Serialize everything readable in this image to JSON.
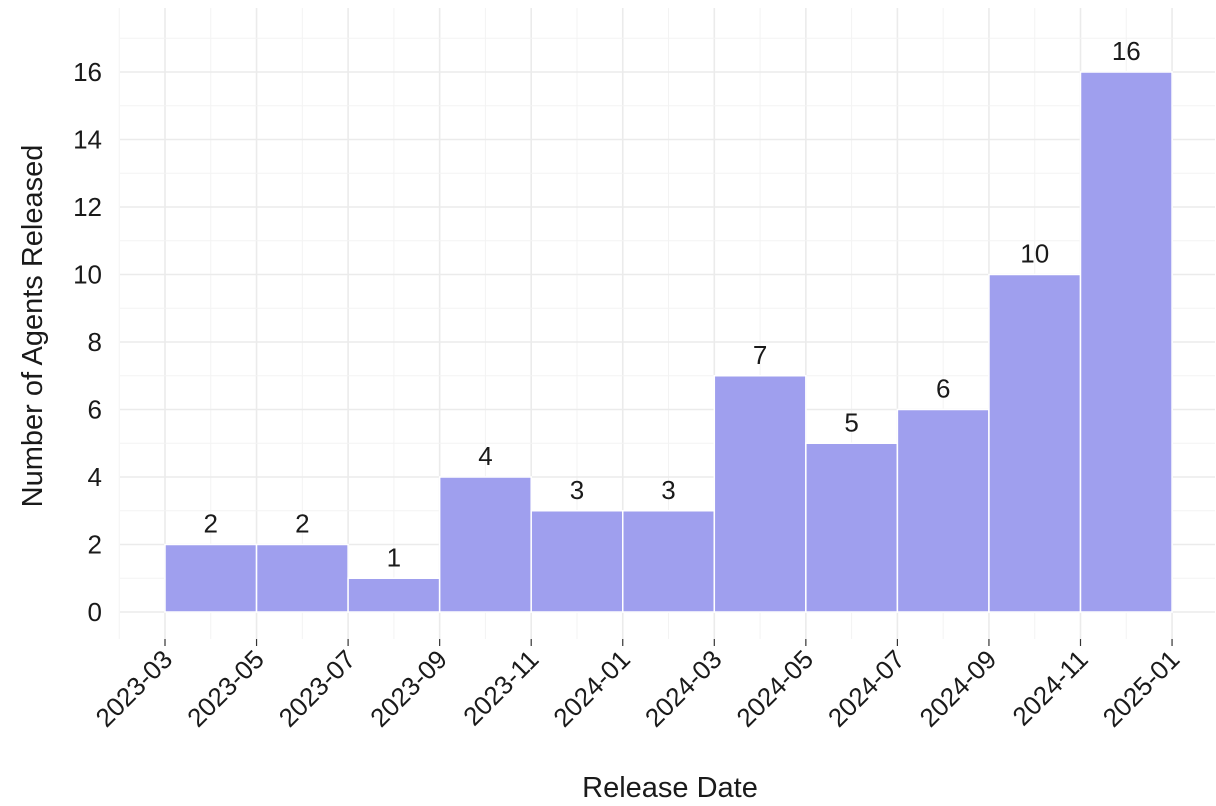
{
  "chart_data": {
    "type": "bar",
    "xlabel": "Release Date",
    "ylabel": "Number of Agents Released",
    "x_ticks": [
      "2023-03",
      "2023-05",
      "2023-07",
      "2023-09",
      "2023-11",
      "2024-01",
      "2024-03",
      "2024-05",
      "2024-07",
      "2024-09",
      "2024-11",
      "2025-01"
    ],
    "bins": [
      {
        "start": "2023-03",
        "end": "2023-05",
        "value": 2
      },
      {
        "start": "2023-05",
        "end": "2023-07",
        "value": 2
      },
      {
        "start": "2023-07",
        "end": "2023-09",
        "value": 1
      },
      {
        "start": "2023-09",
        "end": "2023-11",
        "value": 4
      },
      {
        "start": "2023-11",
        "end": "2024-01",
        "value": 3
      },
      {
        "start": "2024-01",
        "end": "2024-03",
        "value": 3
      },
      {
        "start": "2024-03",
        "end": "2024-05",
        "value": 7
      },
      {
        "start": "2024-05",
        "end": "2024-07",
        "value": 5
      },
      {
        "start": "2024-07",
        "end": "2024-09",
        "value": 6
      },
      {
        "start": "2024-09",
        "end": "2024-11",
        "value": 10
      },
      {
        "start": "2024-11",
        "end": "2025-01",
        "value": 16
      }
    ],
    "y_ticks": [
      0,
      2,
      4,
      6,
      8,
      10,
      12,
      14,
      16
    ],
    "ylim": [
      -0.8,
      17.5
    ],
    "grid": true,
    "bar_color": "#9f9fee",
    "legend": "none"
  }
}
